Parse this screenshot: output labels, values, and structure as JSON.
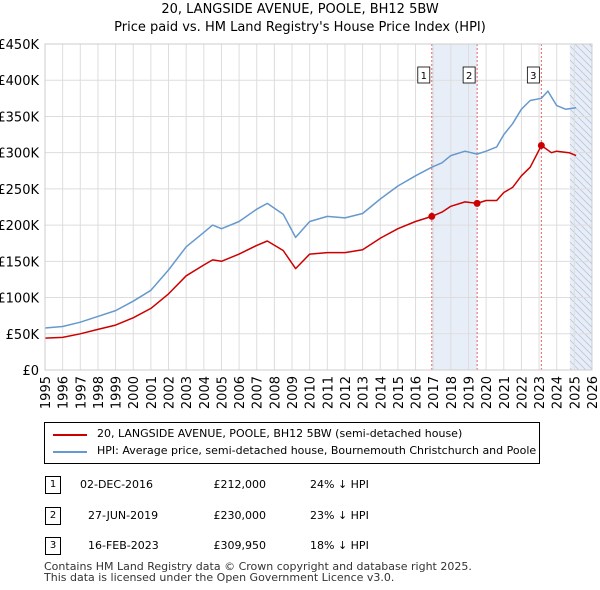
{
  "header": {
    "title": "20, LANGSIDE AVENUE, POOLE, BH12 5BW",
    "subtitle": "Price paid vs. HM Land Registry's House Price Index (HPI)"
  },
  "colors": {
    "property": "#cc0000",
    "hpi": "#6699cc",
    "shade": "#e8eef8",
    "marker_line": "#e06666"
  },
  "chart_data": {
    "type": "line",
    "y_ticks": [
      "£0",
      "£50K",
      "£100K",
      "£150K",
      "£200K",
      "£250K",
      "£300K",
      "£350K",
      "£400K",
      "£450K"
    ],
    "y_tick_values": [
      0,
      50000,
      100000,
      150000,
      200000,
      250000,
      300000,
      350000,
      400000,
      450000
    ],
    "ylim": [
      0,
      450000
    ],
    "x_ticks": [
      "1995",
      "1996",
      "1997",
      "1998",
      "1999",
      "2000",
      "2001",
      "2002",
      "2003",
      "2004",
      "2005",
      "2006",
      "2007",
      "2008",
      "2009",
      "2010",
      "2011",
      "2012",
      "2013",
      "2014",
      "2015",
      "2016",
      "2017",
      "2018",
      "2019",
      "2020",
      "2021",
      "2022",
      "2023",
      "2024",
      "2025",
      "2026"
    ],
    "xlim": [
      1995,
      2026
    ],
    "series": [
      {
        "name": "20, LANGSIDE AVENUE, POOLE, BH12 5BW (semi-detached house)",
        "x": [
          1995,
          1996,
          1997,
          1998,
          1999,
          2000,
          2001,
          2002,
          2003,
          2004,
          2004.5,
          2005,
          2006,
          2007,
          2007.6,
          2008.5,
          2009.2,
          2010,
          2011,
          2012,
          2013,
          2014,
          2015,
          2016,
          2016.92,
          2017.5,
          2018,
          2018.8,
          2019.49,
          2020,
          2020.6,
          2021,
          2021.5,
          2022,
          2022.5,
          2023.13,
          2023.7,
          2024,
          2024.7,
          2025.1
        ],
        "values": [
          44000,
          45000,
          50000,
          56000,
          62000,
          72000,
          85000,
          105000,
          130000,
          145000,
          152000,
          150000,
          160000,
          172000,
          178000,
          165000,
          140000,
          160000,
          162000,
          162000,
          166000,
          182000,
          195000,
          205000,
          212000,
          218000,
          226000,
          232000,
          230000,
          234000,
          234000,
          245000,
          252000,
          268000,
          280000,
          309950,
          300000,
          302000,
          300000,
          296000
        ]
      },
      {
        "name": "HPI: Average price, semi-detached house, Bournemouth Christchurch and Poole",
        "x": [
          1995,
          1996,
          1997,
          1998,
          1999,
          2000,
          2001,
          2002,
          2003,
          2004,
          2004.5,
          2005,
          2006,
          2007,
          2007.6,
          2008.5,
          2009.2,
          2010,
          2011,
          2012,
          2013,
          2014,
          2015,
          2016,
          2016.92,
          2017.5,
          2018,
          2018.8,
          2019.49,
          2020,
          2020.6,
          2021,
          2021.5,
          2022,
          2022.5,
          2023.13,
          2023.5,
          2024,
          2024.5,
          2025.1
        ],
        "values": [
          58000,
          60000,
          66000,
          74000,
          82000,
          95000,
          110000,
          138000,
          170000,
          190000,
          200000,
          195000,
          205000,
          222000,
          230000,
          215000,
          183000,
          205000,
          212000,
          210000,
          216000,
          236000,
          254000,
          268000,
          280000,
          286000,
          296000,
          302000,
          298000,
          302000,
          308000,
          325000,
          340000,
          360000,
          372000,
          375000,
          385000,
          365000,
          360000,
          362000
        ]
      }
    ],
    "sales": [
      {
        "label": "1",
        "x": 2016.92,
        "price": 212000
      },
      {
        "label": "2",
        "x": 2019.49,
        "price": 230000
      },
      {
        "label": "3",
        "x": 2023.13,
        "price": 309950
      }
    ],
    "shaded_ranges": [
      [
        2016.92,
        2019.49
      ],
      [
        2024.75,
        2026
      ]
    ]
  },
  "legend": {
    "property": "20, LANGSIDE AVENUE, POOLE, BH12 5BW (semi-detached house)",
    "hpi": "HPI: Average price, semi-detached house, Bournemouth Christchurch and Poole"
  },
  "sales_table": [
    {
      "num": "1",
      "date": "02-DEC-2016",
      "price": "£212,000",
      "hpi": "24% ↓ HPI"
    },
    {
      "num": "2",
      "date": "27-JUN-2019",
      "price": "£230,000",
      "hpi": "23% ↓ HPI"
    },
    {
      "num": "3",
      "date": "16-FEB-2023",
      "price": "£309,950",
      "hpi": "18% ↓ HPI"
    }
  ],
  "footer": {
    "line1": "Contains HM Land Registry data © Crown copyright and database right 2025.",
    "line2": "This data is licensed under the Open Government Licence v3.0."
  }
}
